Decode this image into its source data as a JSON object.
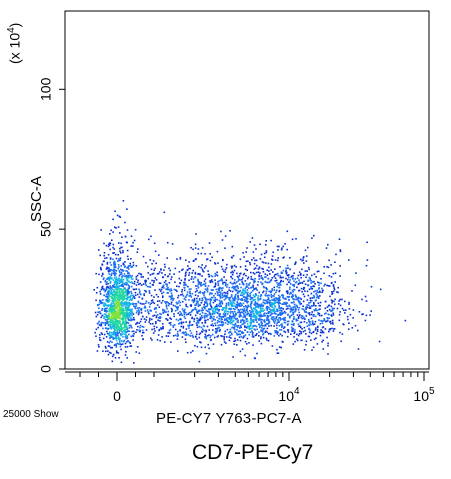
{
  "chart_data": {
    "type": "scatter",
    "subtitle": "CD7-PE-Cy7",
    "xlabel": "PE-CY7 Y763-PC7-A",
    "ylabel": "SSC-A",
    "y_scale_label_prefix": "(x 10",
    "y_scale_label_exp": "4",
    "y_scale_label_suffix": ")",
    "footnote": "25000 Show",
    "x_scale": "biexponential",
    "xlim": [
      -1300,
      100000
    ],
    "ylim": [
      0,
      128
    ],
    "x_ticks": [
      {
        "value": 0,
        "label": "0",
        "exp": ""
      },
      {
        "value": 10000,
        "label": "10",
        "exp": "4"
      },
      {
        "value": 100000,
        "label": "10",
        "exp": "5"
      }
    ],
    "y_ticks": [
      {
        "value": 0,
        "label": "0"
      },
      {
        "value": 50,
        "label": "50"
      },
      {
        "value": 100,
        "label": "100"
      }
    ],
    "density_colormap": [
      "#0a2fd0",
      "#1a6cf0",
      "#12b4e6",
      "#22d6a0",
      "#7fe23c"
    ],
    "series": [
      {
        "x_center": 30,
        "y_center": 21,
        "x_spread_decades": 0.35,
        "y_spread": 7,
        "count": 1300,
        "note_region": "near-zero population"
      },
      {
        "x_center": 5000,
        "y_center": 21,
        "x_spread_decades": 0.35,
        "y_spread": 6,
        "count": 1700,
        "note_region": "positive population"
      }
    ]
  }
}
